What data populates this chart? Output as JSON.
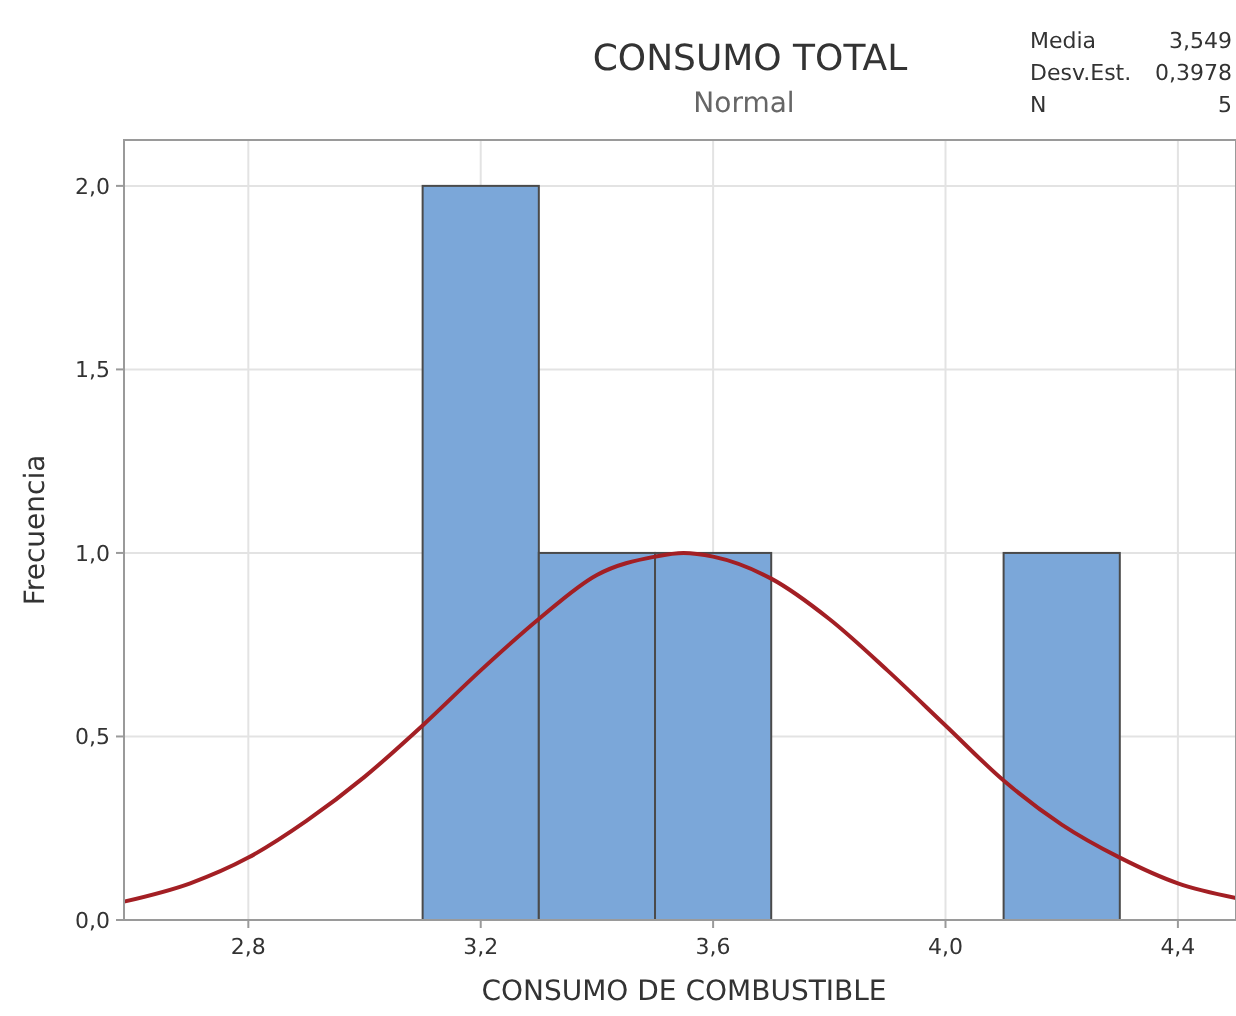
{
  "chart_data": {
    "type": "histogram",
    "title": "CONSUMO TOTAL",
    "subtitle": "Normal",
    "xlabel": "CONSUMO DE COMBUSTIBLE",
    "ylabel": "Frecuencia",
    "annotations": [
      "Media 3,549",
      "Desv.Est. 0,3978",
      "N 5"
    ],
    "bins": [
      3.1,
      3.3,
      3.5,
      3.7,
      3.9,
      4.1,
      4.3
    ],
    "values": [
      2,
      1,
      1,
      0,
      0,
      1
    ],
    "color": "#7ba7d9",
    "series": [
      {
        "type": "line",
        "color": "#a31f24",
        "x": [
          2.586,
          2.7,
          2.8,
          2.9,
          3.0,
          3.1,
          3.2,
          3.3,
          3.4,
          3.5,
          3.549,
          3.6,
          3.7,
          3.8,
          3.9,
          4.0,
          4.1,
          4.2,
          4.3,
          4.4,
          4.5
        ],
        "values": [
          0.05,
          0.1,
          0.17,
          0.27,
          0.39,
          0.53,
          0.68,
          0.82,
          0.94,
          0.99,
          1.0,
          0.99,
          0.93,
          0.82,
          0.68,
          0.53,
          0.38,
          0.26,
          0.17,
          0.1,
          0.06
        ]
      }
    ],
    "xlim": [
      2.586,
      4.5
    ],
    "xticks": [
      {
        "value": 2.8,
        "label": "2,8"
      },
      {
        "value": 3.2,
        "label": "3,2"
      },
      {
        "value": 3.6,
        "label": "3,6"
      },
      {
        "value": 4.0,
        "label": "4,0"
      },
      {
        "value": 4.4,
        "label": "4,4"
      }
    ],
    "ylim": [
      0,
      2.125
    ],
    "yticks": [
      {
        "value": 0,
        "label": "0,0"
      },
      {
        "value": 0.5,
        "label": "0,5"
      },
      {
        "value": 1,
        "label": "1,0"
      },
      {
        "value": 1.5,
        "label": "1,5"
      },
      {
        "value": 2,
        "label": "2,0"
      }
    ],
    "grid": true,
    "line_style": "solid",
    "marker": "none"
  }
}
